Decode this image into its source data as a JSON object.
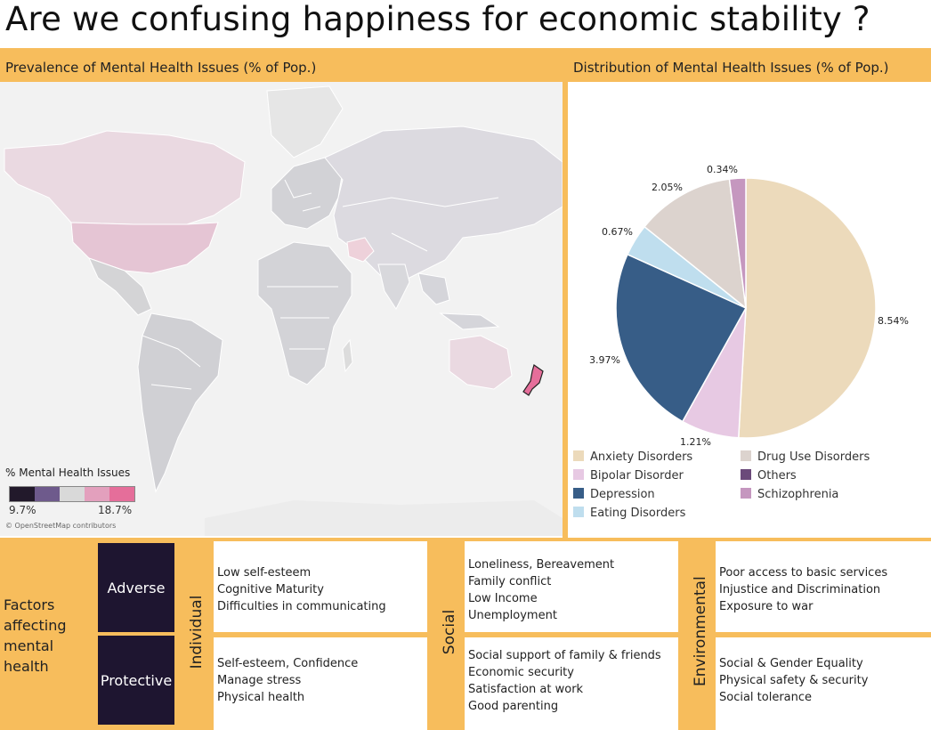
{
  "title": "Are we confusing happiness for economic stability  ?",
  "map_panel": {
    "header": "Prevalence of Mental Health Issues (% of Pop.)",
    "legend_title": "% Mental Health Issues",
    "legend_min": "9.7%",
    "legend_max": "18.7%",
    "legend_colors": [
      "#22192b",
      "#6e5a8c",
      "#d9d9d9",
      "#e3a0bd",
      "#e56e9a"
    ],
    "attribution": "© OpenStreetMap contributors"
  },
  "pie_panel": {
    "header": "Distribution of Mental Health Issues (% of Pop.)"
  },
  "chart_data": {
    "type": "pie",
    "title": "Distribution of Mental Health Issues (% of Pop.)",
    "slices": [
      {
        "name": "Anxiety Disorders",
        "value": 8.54,
        "label": "8.54%",
        "color": "#ecdabb"
      },
      {
        "name": "Bipolar Disorder",
        "value": 1.21,
        "label": "1.21%",
        "color": "#e7c9e3"
      },
      {
        "name": "Depression",
        "value": 3.97,
        "label": "3.97%",
        "color": "#375d87"
      },
      {
        "name": "Eating Disorders",
        "value": 0.67,
        "label": "0.67%",
        "color": "#bfdeee"
      },
      {
        "name": "Drug Use Disorders",
        "value": 2.05,
        "label": "2.05%",
        "color": "#dcd3ce"
      },
      {
        "name": "Schizophrenia",
        "value": 0.34,
        "label": "0.34%",
        "color": "#c597bf"
      }
    ],
    "legend": [
      "Anxiety Disorders",
      "Drug Use Disorders",
      "Bipolar Disorder",
      "Others",
      "Depression",
      "Schizophrenia",
      "Eating Disorders"
    ],
    "legend_colors": {
      "Anxiety Disorders": "#ecdabb",
      "Drug Use Disorders": "#dcd3ce",
      "Bipolar Disorder": "#e7c9e3",
      "Others": "#6b4a7a",
      "Depression": "#375d87",
      "Schizophrenia": "#c597bf",
      "Eating Disorders": "#bfdeee"
    },
    "legend_placement": "bottom"
  },
  "factors": {
    "title_lines": [
      "Factors",
      "affecting",
      "mental",
      "health"
    ],
    "adverse_label": "Adverse",
    "protective_label": "Protective",
    "individual_label": "Individual",
    "social_label": "Social",
    "environmental_label": "Environmental",
    "individual_adverse": [
      "Low self-esteem",
      "Cognitive Maturity",
      "Difficulties in communicating"
    ],
    "individual_protective": [
      "Self-esteem, Confidence",
      "Manage stress",
      "Physical health"
    ],
    "social_adverse": [
      "Loneliness, Bereavement",
      "Family conflict",
      "Low Income",
      "Unemployment"
    ],
    "social_protective": [
      "Social support of family & friends",
      "Economic security",
      "Satisfaction at work",
      "Good parenting"
    ],
    "environmental_adverse": [
      "Poor access to basic services",
      "Injustice and Discrimination",
      "Exposure to war"
    ],
    "environmental_protective": [
      "Social & Gender Equality",
      "Physical safety & security",
      "Social tolerance"
    ]
  }
}
